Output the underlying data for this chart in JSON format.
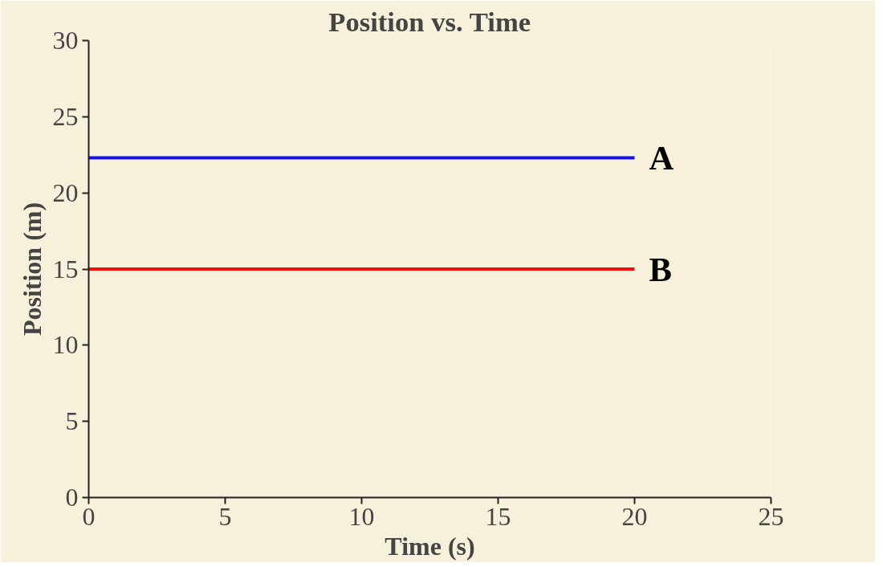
{
  "chart_data": {
    "type": "line",
    "title": "Position vs. Time",
    "xlabel": "Time (s)",
    "ylabel": "Position (m)",
    "x": [
      0,
      20
    ],
    "series": [
      {
        "name": "A",
        "color": "#1010f0",
        "values": [
          22.3,
          22.3
        ]
      },
      {
        "name": "B",
        "color": "#f01010",
        "values": [
          15,
          15
        ]
      }
    ],
    "xlim": [
      0,
      25
    ],
    "ylim": [
      0,
      30
    ],
    "xticks": [
      0,
      5,
      10,
      15,
      20,
      25
    ],
    "yticks": [
      0,
      5,
      10,
      15,
      20,
      25,
      30
    ],
    "grid": false,
    "marker": "none",
    "line_style": "solid"
  }
}
